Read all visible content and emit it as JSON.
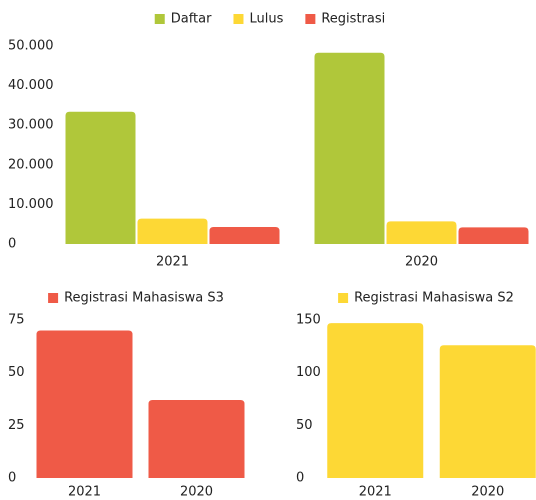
{
  "chart_data": [
    {
      "type": "bar",
      "categories": [
        "2021",
        "2020"
      ],
      "series": [
        {
          "name": "Daftar",
          "color": "#b0c73a",
          "values": [
            33400,
            48300
          ]
        },
        {
          "name": "Lulus",
          "color": "#fdd835",
          "values": [
            6400,
            5700
          ]
        },
        {
          "name": "Registrasi",
          "color": "#ef5a47",
          "values": [
            4300,
            4200
          ]
        }
      ],
      "ylim": [
        0,
        50000
      ],
      "yticks": [
        0,
        {
          "value": 10000,
          "label": "10.000"
        },
        {
          "value": 20000,
          "label": "20.000"
        },
        {
          "value": 30000,
          "label": "30.000"
        },
        {
          "value": 40000,
          "label": "40.000"
        },
        {
          "value": 50000,
          "label": "50.000"
        }
      ],
      "legend": "top",
      "grid": false
    },
    {
      "type": "bar",
      "categories": [
        "2021",
        "2020"
      ],
      "series": [
        {
          "name": "Registrasi Mahasiswa S3",
          "color": "#ef5a47",
          "values": [
            70,
            37
          ]
        }
      ],
      "ylim": [
        0,
        75
      ],
      "yticks": [
        0,
        25,
        50,
        75
      ],
      "legend": "top",
      "grid": false
    },
    {
      "type": "bar",
      "categories": [
        "2021",
        "2020"
      ],
      "series": [
        {
          "name": "Registrasi Mahasiswa S2",
          "color": "#fdd835",
          "values": [
            147,
            126
          ]
        }
      ],
      "ylim": [
        0,
        150
      ],
      "yticks": [
        0,
        50,
        100,
        150
      ],
      "legend": "top",
      "grid": false
    }
  ]
}
